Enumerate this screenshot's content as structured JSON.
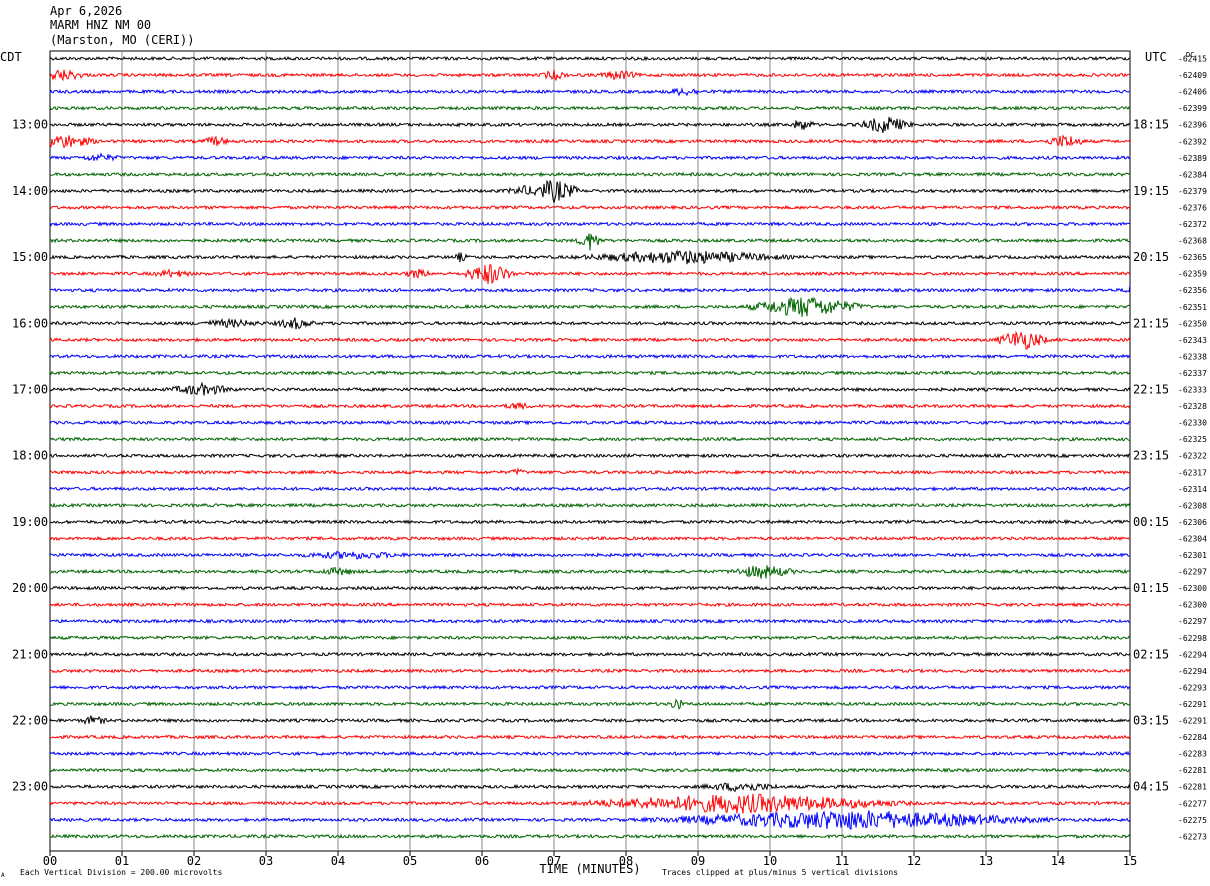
{
  "header": {
    "date": "Apr 6,2026",
    "station": "MARM HNZ NM 00",
    "location": "(Marston, MO (CERI))"
  },
  "chart_data": {
    "type": "line",
    "title": "",
    "left_timezone": "CDT",
    "right_timezone": "UTC",
    "dc_label": "DC",
    "xlabel": "TIME (MINUTES)",
    "x_ticks": [
      "00",
      "01",
      "02",
      "03",
      "04",
      "05",
      "06",
      "07",
      "08",
      "09",
      "10",
      "11",
      "12",
      "13",
      "14",
      "15"
    ],
    "xlim": [
      0,
      15
    ],
    "left_time_labels": [
      "13:00",
      "14:00",
      "15:00",
      "16:00",
      "17:00",
      "18:00",
      "19:00",
      "20:00",
      "21:00",
      "22:00",
      "23:00"
    ],
    "right_time_labels": [
      "18:15",
      "19:15",
      "20:15",
      "21:15",
      "22:15",
      "23:15",
      "00:15",
      "01:15",
      "02:15",
      "03:15",
      "04:15"
    ],
    "first_labeled_trace": 4,
    "traces_per_hour": 4,
    "trace_colors": [
      "#000000",
      "#ff0000",
      "#0000ff",
      "#006400"
    ],
    "dc_offsets": [
      "-62415",
      "-62409",
      "-62406",
      "-62399",
      "-62396",
      "-62392",
      "-62389",
      "-62384",
      "-62379",
      "-62376",
      "-62372",
      "-62368",
      "-62365",
      "-62359",
      "-62356",
      "-62351",
      "-62350",
      "-62343",
      "-62338",
      "-62337",
      "-62333",
      "-62328",
      "-62330",
      "-62325",
      "-62322",
      "-62317",
      "-62314",
      "-62308",
      "-62306",
      "-62304",
      "-62301",
      "-62297",
      "-62300",
      "-62300",
      "-62297",
      "-62298",
      "-62294",
      "-62294",
      "-62293",
      "-62291",
      "-62291",
      "-62284",
      "-62283",
      "-62281",
      "-62281",
      "-62277",
      "-62275",
      "-62273"
    ],
    "noise_amplitude": 1.5,
    "events": [
      {
        "trace": 1,
        "minute": 0.15,
        "amp": 5,
        "dur": 0.4
      },
      {
        "trace": 1,
        "minute": 7.0,
        "amp": 4,
        "dur": 0.2
      },
      {
        "trace": 1,
        "minute": 7.9,
        "amp": 4,
        "dur": 0.3
      },
      {
        "trace": 2,
        "minute": 8.8,
        "amp": 3,
        "dur": 0.3
      },
      {
        "trace": 4,
        "minute": 10.45,
        "amp": 5,
        "dur": 0.2
      },
      {
        "trace": 4,
        "minute": 11.6,
        "amp": 8,
        "dur": 0.4
      },
      {
        "trace": 5,
        "minute": 0.2,
        "amp": 6,
        "dur": 0.5
      },
      {
        "trace": 5,
        "minute": 2.3,
        "amp": 4,
        "dur": 0.2
      },
      {
        "trace": 5,
        "minute": 14.1,
        "amp": 6,
        "dur": 0.3
      },
      {
        "trace": 6,
        "minute": 0.7,
        "amp": 3,
        "dur": 0.3
      },
      {
        "trace": 8,
        "minute": 7.0,
        "amp": 11,
        "dur": 0.4
      },
      {
        "trace": 8,
        "minute": 6.6,
        "amp": 4,
        "dur": 0.3
      },
      {
        "trace": 11,
        "minute": 7.5,
        "amp": 9,
        "dur": 0.2
      },
      {
        "trace": 12,
        "minute": 8.8,
        "amp": 6,
        "dur": 1.6
      },
      {
        "trace": 12,
        "minute": 5.7,
        "amp": 4,
        "dur": 0.1
      },
      {
        "trace": 13,
        "minute": 6.1,
        "amp": 10,
        "dur": 0.4
      },
      {
        "trace": 13,
        "minute": 5.1,
        "amp": 4,
        "dur": 0.2
      },
      {
        "trace": 13,
        "minute": 1.7,
        "amp": 3,
        "dur": 0.3
      },
      {
        "trace": 14,
        "minute": 15.0,
        "amp": 5,
        "dur": 0.1
      },
      {
        "trace": 15,
        "minute": 10.5,
        "amp": 10,
        "dur": 0.9
      },
      {
        "trace": 16,
        "minute": 3.4,
        "amp": 5,
        "dur": 0.3
      },
      {
        "trace": 16,
        "minute": 2.5,
        "amp": 3,
        "dur": 0.5
      },
      {
        "trace": 17,
        "minute": 13.5,
        "amp": 10,
        "dur": 0.4
      },
      {
        "trace": 20,
        "minute": 2.1,
        "amp": 5,
        "dur": 0.5
      },
      {
        "trace": 21,
        "minute": 6.5,
        "amp": 3,
        "dur": 0.2
      },
      {
        "trace": 25,
        "minute": 6.5,
        "amp": 3,
        "dur": 0.1
      },
      {
        "trace": 30,
        "minute": 4.2,
        "amp": 3,
        "dur": 0.8
      },
      {
        "trace": 31,
        "minute": 9.9,
        "amp": 6,
        "dur": 0.5
      },
      {
        "trace": 31,
        "minute": 4.0,
        "amp": 3,
        "dur": 0.3
      },
      {
        "trace": 39,
        "minute": 8.7,
        "amp": 7,
        "dur": 0.1
      },
      {
        "trace": 40,
        "minute": 0.6,
        "amp": 4,
        "dur": 0.2
      },
      {
        "trace": 44,
        "minute": 9.6,
        "amp": 4,
        "dur": 0.6
      },
      {
        "trace": 45,
        "minute": 9.6,
        "amp": 9,
        "dur": 2.5
      },
      {
        "trace": 46,
        "minute": 11.1,
        "amp": 9,
        "dur": 3.0
      }
    ]
  },
  "footer": {
    "note_left": "Each Vertical Division =  200.00 microvolts",
    "note_right": "Traces clipped at plus/minus 5 vertical divisions",
    "corner_mark": "A"
  }
}
